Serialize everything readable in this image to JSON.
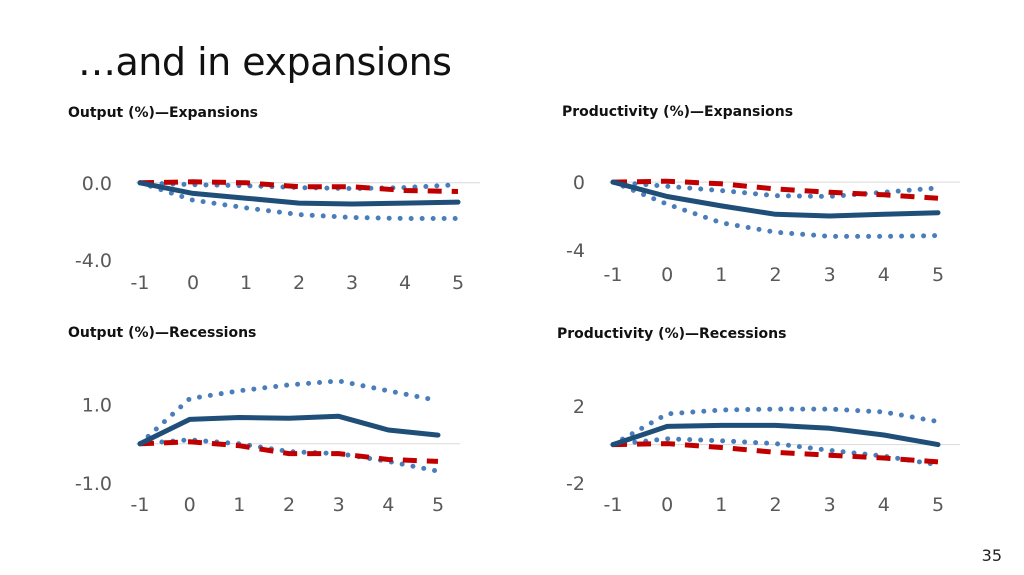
{
  "slide": {
    "title": "…and in expansions",
    "page_number": "35"
  },
  "colors": {
    "estimate": "#1f4e79",
    "band": "#4a7ebb",
    "comparison": "#c00000",
    "zero_line": "#d9d9d9",
    "tick_text": "#595959"
  },
  "chart_data": [
    {
      "type": "line",
      "title": "Output (%)—Expansions",
      "x": [
        -1,
        0,
        1,
        2,
        3,
        4,
        5
      ],
      "xticks": [
        "-1",
        "0",
        "1",
        "2",
        "3",
        "4",
        "5"
      ],
      "yticks": [
        {
          "value": 0,
          "label": "0.0"
        },
        {
          "value": -4,
          "label": "-4.0"
        }
      ],
      "ylim": [
        -4.0,
        0.3
      ],
      "series": [
        {
          "role": "estimate",
          "style": "solid",
          "values": [
            0,
            -0.55,
            -0.8,
            -1.05,
            -1.1,
            -1.05,
            -1.0
          ]
        },
        {
          "role": "upper-band",
          "style": "dotted",
          "values": [
            0,
            -0.1,
            -0.15,
            -0.25,
            -0.3,
            -0.25,
            -0.1
          ]
        },
        {
          "role": "lower-band",
          "style": "dotted",
          "values": [
            0,
            -0.9,
            -1.3,
            -1.65,
            -1.8,
            -1.85,
            -1.85
          ]
        },
        {
          "role": "comparison",
          "style": "dashed",
          "values": [
            0,
            0.05,
            0.0,
            -0.2,
            -0.2,
            -0.4,
            -0.45
          ]
        }
      ]
    },
    {
      "type": "line",
      "title": "Productivity (%)—Expansions",
      "x": [
        -1,
        0,
        1,
        2,
        3,
        4,
        5
      ],
      "xticks": [
        "-1",
        "0",
        "1",
        "2",
        "3",
        "4",
        "5"
      ],
      "yticks": [
        {
          "value": 0,
          "label": "0"
        },
        {
          "value": -4,
          "label": "-4"
        }
      ],
      "ylim": [
        -4.0,
        0.3
      ],
      "series": [
        {
          "role": "estimate",
          "style": "solid",
          "values": [
            0,
            -0.85,
            -1.4,
            -1.9,
            -2.0,
            -1.9,
            -1.8
          ]
        },
        {
          "role": "upper-band",
          "style": "dotted",
          "values": [
            0,
            -0.25,
            -0.5,
            -0.8,
            -0.85,
            -0.6,
            -0.35
          ]
        },
        {
          "role": "lower-band",
          "style": "dotted",
          "values": [
            0,
            -1.3,
            -2.4,
            -2.95,
            -3.2,
            -3.2,
            -3.15
          ]
        },
        {
          "role": "comparison",
          "style": "dashed",
          "values": [
            0,
            0.05,
            -0.1,
            -0.4,
            -0.6,
            -0.75,
            -0.95
          ]
        }
      ]
    },
    {
      "type": "line",
      "title": "Output (%)—Recessions",
      "x": [
        -1,
        0,
        1,
        2,
        3,
        4,
        5
      ],
      "xticks": [
        "-1",
        "0",
        "1",
        "2",
        "3",
        "4",
        "5"
      ],
      "yticks": [
        {
          "value": 1,
          "label": "1.0"
        },
        {
          "value": -1,
          "label": "-1.0"
        }
      ],
      "ylim": [
        -1.0,
        1.6
      ],
      "series": [
        {
          "role": "estimate",
          "style": "solid",
          "values": [
            0,
            0.62,
            0.67,
            0.65,
            0.7,
            0.35,
            0.22
          ]
        },
        {
          "role": "upper-band",
          "style": "dotted",
          "values": [
            0,
            1.15,
            1.35,
            1.5,
            1.6,
            1.35,
            1.1
          ]
        },
        {
          "role": "lower-band",
          "style": "dotted",
          "values": [
            0,
            0.1,
            0.0,
            -0.2,
            -0.25,
            -0.45,
            -0.7
          ]
        },
        {
          "role": "comparison",
          "style": "dashed",
          "values": [
            0,
            0.05,
            -0.05,
            -0.25,
            -0.25,
            -0.4,
            -0.45
          ]
        }
      ]
    },
    {
      "type": "line",
      "title": "Productivity (%)—Recessions",
      "x": [
        -1,
        0,
        1,
        2,
        3,
        4,
        5
      ],
      "xticks": [
        "-1",
        "0",
        "1",
        "2",
        "3",
        "4",
        "5"
      ],
      "yticks": [
        {
          "value": 2,
          "label": "2"
        },
        {
          "value": -2,
          "label": "-2"
        }
      ],
      "ylim": [
        -2.0,
        3.0
      ],
      "series": [
        {
          "role": "estimate",
          "style": "solid",
          "values": [
            0,
            0.95,
            1.0,
            1.0,
            0.85,
            0.5,
            0.0
          ]
        },
        {
          "role": "upper-band",
          "style": "dotted",
          "values": [
            0,
            1.6,
            1.8,
            1.85,
            1.85,
            1.7,
            1.2
          ]
        },
        {
          "role": "lower-band",
          "style": "dotted",
          "values": [
            0,
            0.3,
            0.2,
            0.05,
            -0.3,
            -0.6,
            -1.05
          ]
        },
        {
          "role": "comparison",
          "style": "dashed",
          "values": [
            0,
            0.05,
            -0.15,
            -0.4,
            -0.55,
            -0.7,
            -0.9
          ]
        }
      ]
    }
  ]
}
